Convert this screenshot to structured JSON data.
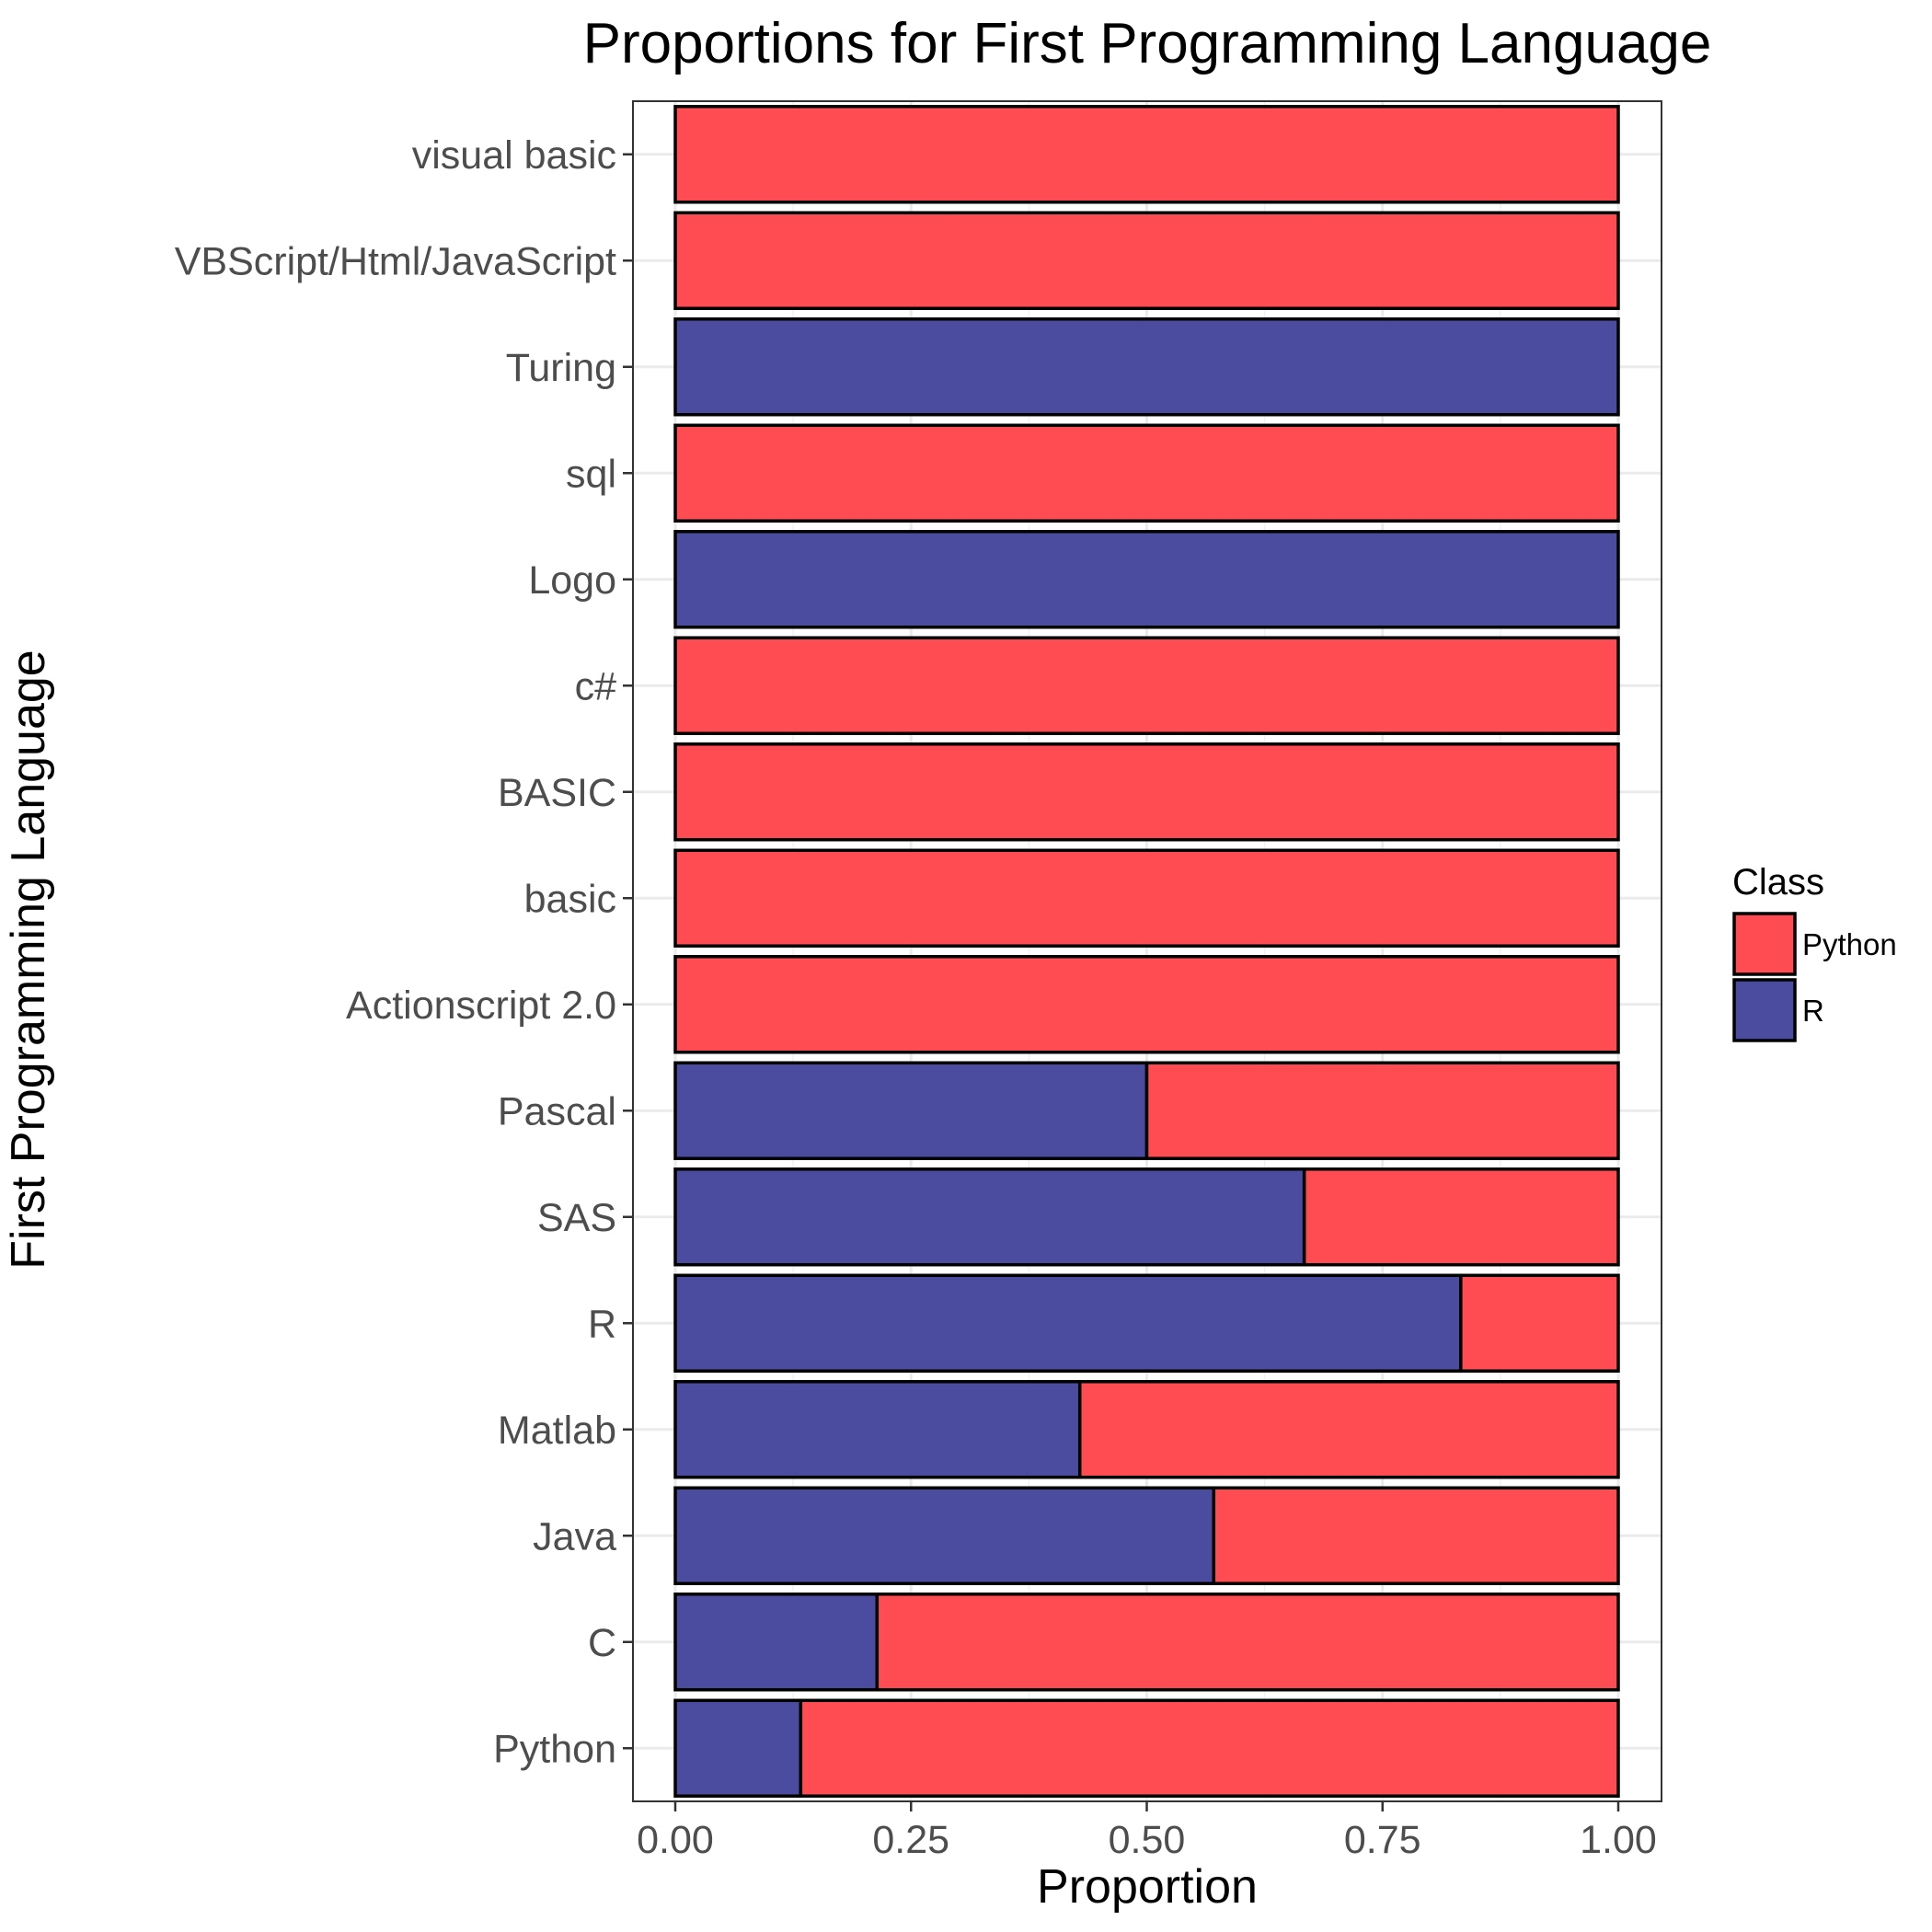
{
  "chart_data": {
    "type": "bar",
    "orientation": "horizontal",
    "stacked": true,
    "title": "Proportions for First Programming Language",
    "xlabel": "Proportion",
    "ylabel": "First Programming Language",
    "xlim": [
      0,
      1
    ],
    "x_ticks": [
      "0.00",
      "0.25",
      "0.50",
      "0.75",
      "1.00"
    ],
    "categories": [
      "visual basic",
      "VBScript/Html/JavaScript",
      "Turing",
      "sql",
      "Logo",
      "c#",
      "BASIC",
      "basic",
      "Actionscript 2.0",
      "Pascal",
      "SAS",
      "R",
      "Matlab",
      "Java",
      "C",
      "Python"
    ],
    "series": [
      {
        "name": "R",
        "color": "#4B4B9F",
        "values": [
          0,
          0,
          1,
          0,
          1,
          0,
          0,
          0,
          0,
          0.5,
          0.667,
          0.833,
          0.429,
          0.571,
          0.214,
          0.133
        ]
      },
      {
        "name": "Python",
        "color": "#FF4B52",
        "values": [
          1,
          1,
          0,
          1,
          0,
          1,
          1,
          1,
          1,
          0.5,
          0.333,
          0.167,
          0.571,
          0.429,
          0.786,
          0.867
        ]
      }
    ],
    "legend": {
      "title": "Class",
      "position": "right",
      "items": [
        {
          "label": "Python",
          "color": "#FF4B52"
        },
        {
          "label": "R",
          "color": "#4B4B9F"
        }
      ]
    },
    "grid": true
  }
}
